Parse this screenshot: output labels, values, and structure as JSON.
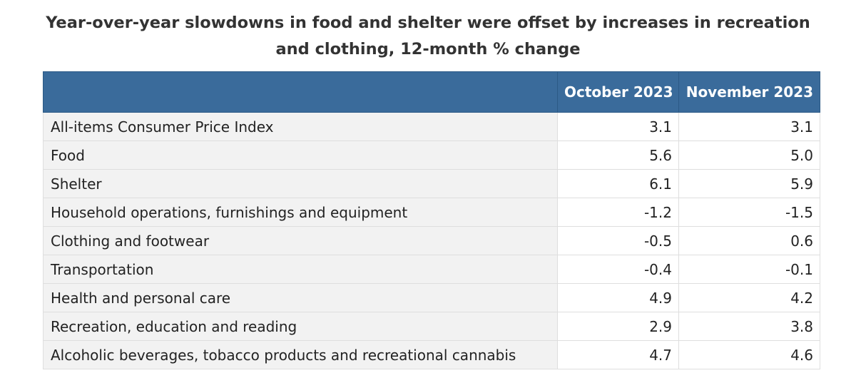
{
  "chart_data": {
    "type": "table",
    "title": "Year-over-year slowdowns in food and shelter were offset by increases in recreation and clothing, 12-month % change",
    "columns": [
      "",
      "October 2023",
      "November 2023"
    ],
    "rows": [
      {
        "label": "All-items Consumer Price Index",
        "october_2023": "3.1",
        "november_2023": "3.1"
      },
      {
        "label": "Food",
        "october_2023": "5.6",
        "november_2023": "5.0"
      },
      {
        "label": "Shelter",
        "october_2023": "6.1",
        "november_2023": "5.9"
      },
      {
        "label": "Household operations, furnishings and equipment",
        "october_2023": "-1.2",
        "november_2023": "-1.5"
      },
      {
        "label": "Clothing and footwear",
        "october_2023": "-0.5",
        "november_2023": "0.6"
      },
      {
        "label": "Transportation",
        "october_2023": "-0.4",
        "november_2023": "-0.1"
      },
      {
        "label": "Health and personal care",
        "october_2023": "4.9",
        "november_2023": "4.2"
      },
      {
        "label": "Recreation, education and reading",
        "october_2023": "2.9",
        "november_2023": "3.8"
      },
      {
        "label": "Alcoholic beverages, tobacco products and recreational cannabis",
        "october_2023": "4.7",
        "november_2023": "4.6"
      }
    ]
  },
  "colors": {
    "header_background": "#3a6b9b",
    "header_text": "#ffffff",
    "label_cell_background": "#f2f2f2"
  }
}
